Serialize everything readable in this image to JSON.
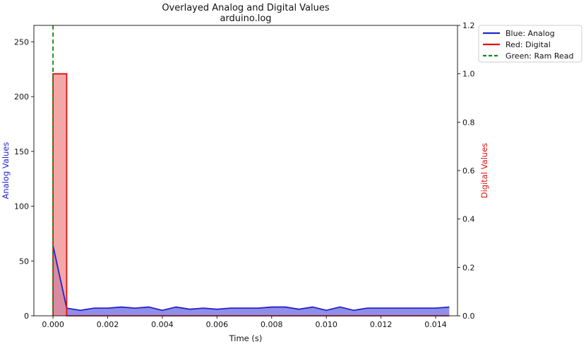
{
  "chart_data": {
    "type": "line",
    "title": "Overlayed Analog and Digital Values",
    "subtitle": "arduino.log",
    "xlabel": "Time (s)",
    "ylabel_left": "Analog Values",
    "ylabel_right": "Digital Values",
    "xlim": [
      -0.0007,
      0.0148
    ],
    "ylim_left": [
      0,
      265
    ],
    "ylim_right": [
      0,
      1.2
    ],
    "x_ticks": [
      "0.000",
      "0.002",
      "0.004",
      "0.006",
      "0.008",
      "0.010",
      "0.012",
      "0.014"
    ],
    "y_left_ticks": [
      "0",
      "50",
      "100",
      "150",
      "200",
      "250"
    ],
    "y_right_ticks": [
      "0.0",
      "0.2",
      "0.4",
      "0.6",
      "0.8",
      "1.0",
      "1.2"
    ],
    "grid": false,
    "legend_position": "upper right, outside plot",
    "series": [
      {
        "name": "Blue: Analog",
        "axis": "left",
        "color": "#2222cc",
        "fill_color": "#7b7be6",
        "x": [
          0.0,
          0.0005,
          0.001,
          0.0015,
          0.002,
          0.0025,
          0.003,
          0.0035,
          0.004,
          0.0045,
          0.005,
          0.0055,
          0.006,
          0.0065,
          0.007,
          0.0075,
          0.008,
          0.0085,
          0.009,
          0.0095,
          0.01,
          0.0105,
          0.011,
          0.0115,
          0.012,
          0.0125,
          0.013,
          0.0135,
          0.014,
          0.0145
        ],
        "values": [
          64,
          7,
          5,
          7,
          7,
          8,
          7,
          8,
          5,
          8,
          6,
          7,
          6,
          7,
          7,
          7,
          8,
          8,
          6,
          8,
          5,
          8,
          5,
          7,
          7,
          7,
          7,
          7,
          7,
          8
        ]
      },
      {
        "name": "Red: Digital",
        "axis": "right",
        "color": "#dd1111",
        "fill_color": "#f08a8a",
        "x": [
          0.0,
          0.0005,
          0.001,
          0.0015,
          0.002,
          0.0025,
          0.003,
          0.0035,
          0.004,
          0.0045,
          0.005,
          0.0055,
          0.006,
          0.0065,
          0.007,
          0.0075,
          0.008,
          0.0085,
          0.009,
          0.0095,
          0.01,
          0.0105,
          0.011,
          0.0115,
          0.012,
          0.0125,
          0.013,
          0.0135,
          0.014,
          0.0145
        ],
        "values": [
          1,
          0,
          0,
          0,
          0,
          0,
          0,
          0,
          0,
          0,
          0,
          0,
          0,
          0,
          0,
          0,
          0,
          0,
          0,
          0,
          0,
          0,
          0,
          0,
          0,
          0,
          0,
          0,
          0,
          0
        ]
      },
      {
        "name": "Green: Ram Read",
        "type": "vline",
        "color": "#118811",
        "x": 0.0
      }
    ]
  }
}
